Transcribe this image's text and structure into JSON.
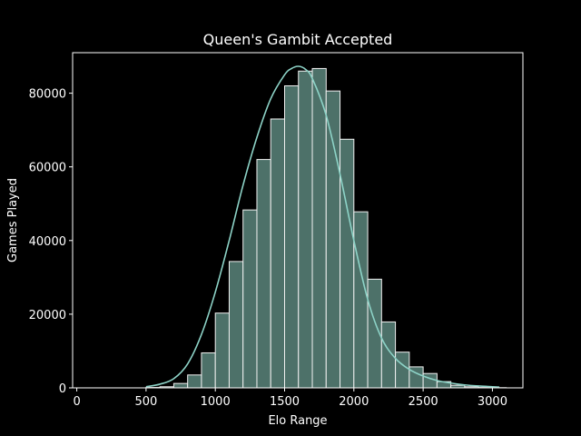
{
  "chart_data": {
    "type": "bar",
    "title": "Queen's Gambit Accepted",
    "xlabel": "Elo Range",
    "ylabel": "Games Played",
    "xlim": [
      -30,
      3220
    ],
    "ylim": [
      0,
      91000
    ],
    "xticks": [
      0,
      500,
      1000,
      1500,
      2000,
      2500,
      3000
    ],
    "yticks": [
      0,
      20000,
      40000,
      60000,
      80000
    ],
    "grid": false,
    "legend": "none",
    "bin_edges": [
      100,
      200,
      300,
      400,
      500,
      600,
      700,
      800,
      900,
      1000,
      1100,
      1200,
      1300,
      1400,
      1500,
      1600,
      1700,
      1800,
      1900,
      2000,
      2100,
      2200,
      2300,
      2400,
      2500,
      2600,
      2700,
      2800,
      2900,
      3000,
      3100
    ],
    "values": [
      0,
      0,
      0,
      0,
      100,
      300,
      1200,
      3500,
      9500,
      20300,
      34300,
      48300,
      62000,
      73000,
      82000,
      86000,
      86700,
      80600,
      67500,
      47800,
      29500,
      17900,
      9700,
      5700,
      3900,
      1700,
      700,
      300,
      100,
      50
    ],
    "kde_x": [
      500,
      600,
      700,
      800,
      900,
      1000,
      1100,
      1200,
      1300,
      1400,
      1500,
      1550,
      1600,
      1650,
      1700,
      1800,
      1900,
      2000,
      2100,
      2200,
      2300,
      2400,
      2500,
      2600,
      2700,
      2800,
      2900,
      3000,
      3050
    ],
    "kde_y": [
      300,
      1000,
      2500,
      6500,
      14500,
      26000,
      40000,
      55000,
      68000,
      78500,
      85000,
      86700,
      87300,
      86500,
      84000,
      74000,
      58000,
      40000,
      24000,
      13500,
      8000,
      5000,
      3200,
      2000,
      1300,
      800,
      500,
      300,
      200
    ],
    "colors": {
      "background": "#000000",
      "bar_fill": "#4d7169",
      "bar_edge": "#f0f0f0",
      "kde_line": "#8dd3c7",
      "axis": "#ffffff"
    }
  }
}
